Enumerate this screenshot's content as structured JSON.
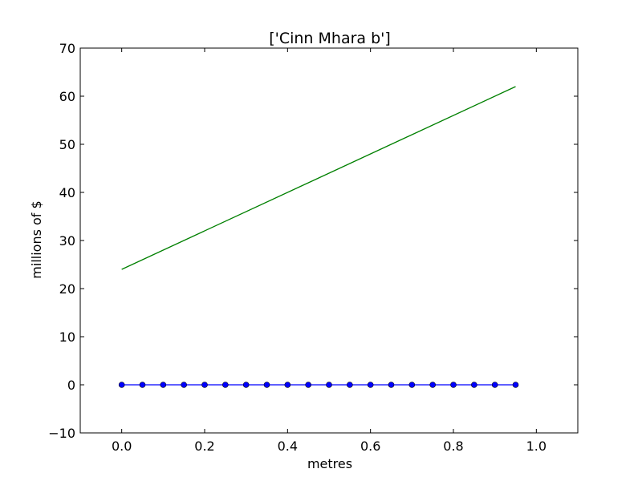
{
  "chart_data": {
    "type": "line",
    "title": "['Cinn Mhara b']",
    "xlabel": "metres",
    "ylabel": "millions of $",
    "xlim": [
      -0.1,
      1.1
    ],
    "ylim": [
      -10,
      70
    ],
    "xticks": [
      0.0,
      0.2,
      0.4,
      0.6,
      0.8,
      1.0
    ],
    "xtick_labels": [
      "0.0",
      "0.2",
      "0.4",
      "0.6",
      "0.8",
      "1.0"
    ],
    "yticks": [
      -10,
      0,
      10,
      20,
      30,
      40,
      50,
      60,
      70
    ],
    "ytick_labels": [
      "−10",
      "0",
      "10",
      "20",
      "30",
      "40",
      "50",
      "60",
      "70"
    ],
    "grid": false,
    "series": [
      {
        "color": "#0000ff",
        "marker": "circle",
        "x": [
          0.0,
          0.05,
          0.1,
          0.15,
          0.2,
          0.25,
          0.3,
          0.35,
          0.4,
          0.45,
          0.5,
          0.55,
          0.6,
          0.65,
          0.7,
          0.75,
          0.8,
          0.85,
          0.9,
          0.95
        ],
        "y": [
          0,
          0,
          0,
          0,
          0,
          0,
          0,
          0,
          0,
          0,
          0,
          0,
          0,
          0,
          0,
          0,
          0,
          0,
          0,
          0
        ]
      },
      {
        "color": "#008000",
        "marker": "none",
        "x": [
          0.0,
          0.95
        ],
        "y": [
          24,
          62
        ]
      }
    ]
  }
}
